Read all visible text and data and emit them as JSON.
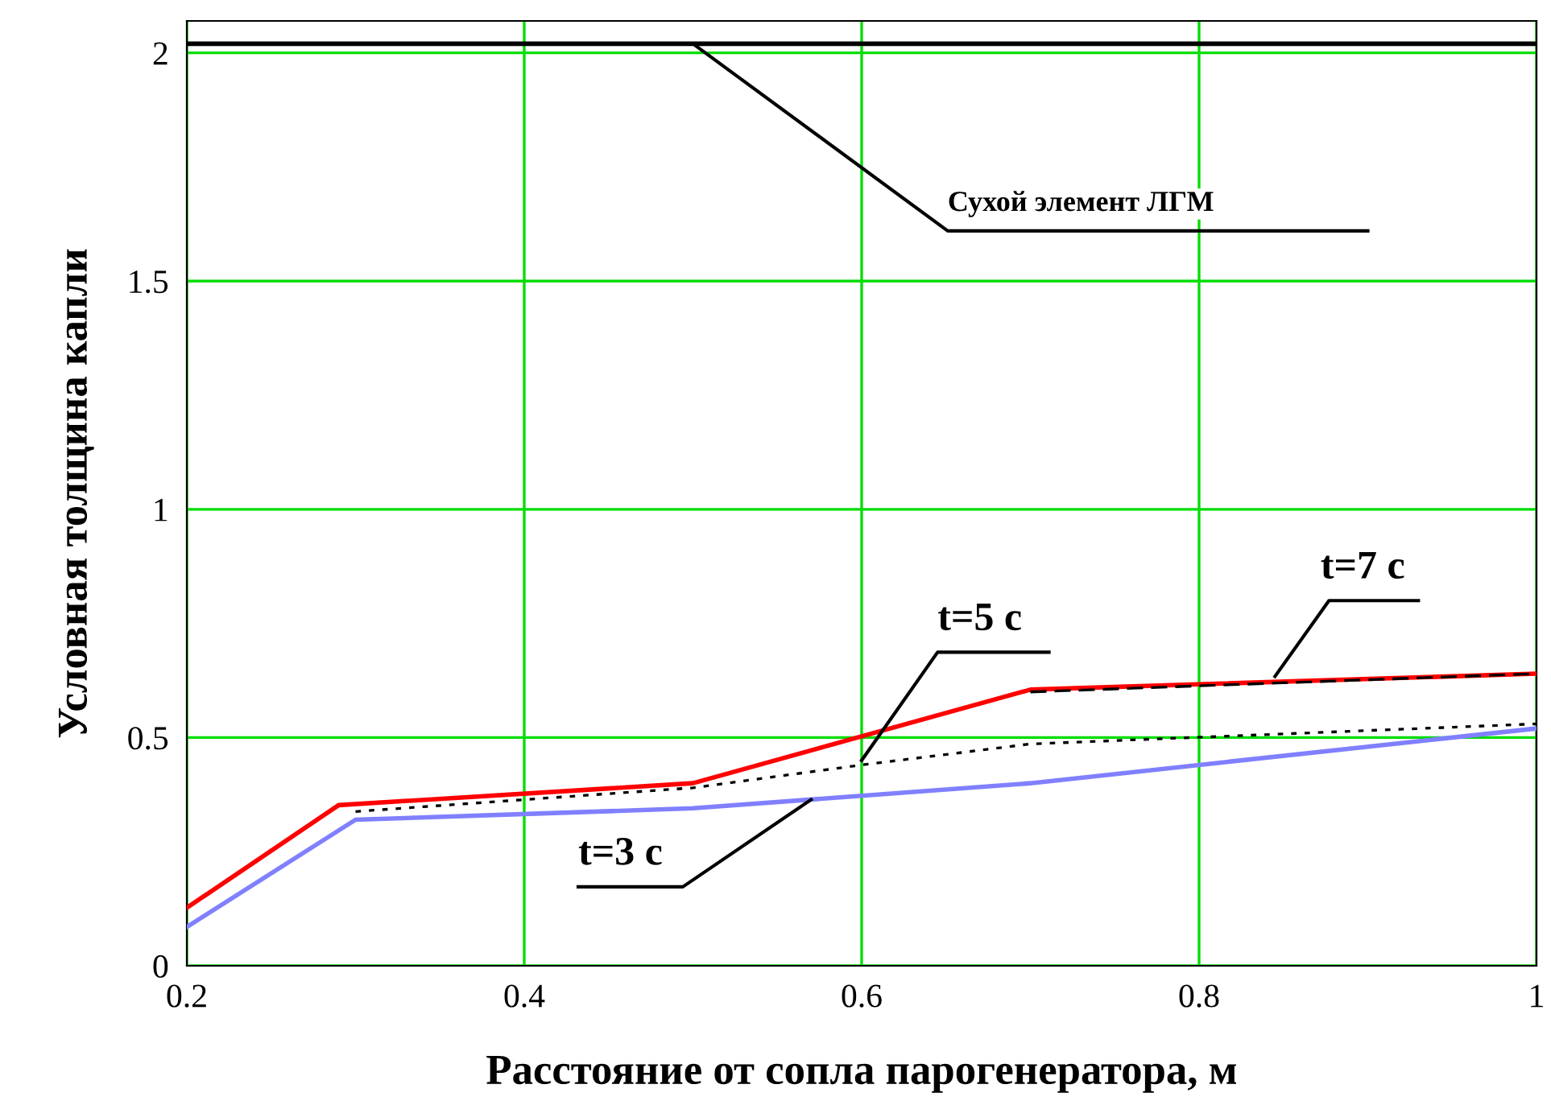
{
  "chart_data": {
    "type": "line",
    "xlabel": "Расстояние от сопла парогенератора, м",
    "ylabel": "Условная толщина капли",
    "xlim": [
      0.2,
      1
    ],
    "ylim": [
      0,
      2.07
    ],
    "xticks": [
      0.2,
      0.4,
      0.6,
      0.8,
      1
    ],
    "yticks": [
      0,
      0.5,
      1,
      1.5,
      2
    ],
    "grid": true,
    "series": [
      {
        "color": "#000000",
        "x": [
          0.2,
          1
        ],
        "values": [
          2.02,
          2.02
        ],
        "line_style": "solid"
      },
      {
        "color": "#ff0000",
        "x": [
          0.2,
          0.29,
          0.5,
          0.7,
          1
        ],
        "values": [
          0.127,
          0.352,
          0.4,
          0.605,
          0.64
        ],
        "line_style": "solid"
      },
      {
        "color": "#8080ff",
        "x": [
          0.2,
          0.3,
          0.5,
          0.7,
          1
        ],
        "values": [
          0.085,
          0.32,
          0.345,
          0.4,
          0.52
        ],
        "line_style": "solid"
      },
      {
        "color": "#000000",
        "x": [
          0.3,
          0.5,
          0.6,
          0.7,
          1
        ],
        "values": [
          0.338,
          0.39,
          0.44,
          0.486,
          0.53
        ],
        "line_style": "dotted"
      },
      {
        "color": "#000000",
        "x": [
          0.7,
          1
        ],
        "values": [
          0.6,
          0.64
        ],
        "line_style": "dashed"
      }
    ],
    "annotations": [
      {
        "text": "Сухой элемент ЛГМ",
        "x": 0.5,
        "y": 2.02
      },
      {
        "text": "t=5 c",
        "x": 0.6,
        "y": 0.45
      },
      {
        "text": "t=7 c",
        "x": 0.845,
        "y": 0.634
      },
      {
        "text": "t=3 c",
        "x": 0.57,
        "y": 0.364
      }
    ]
  }
}
